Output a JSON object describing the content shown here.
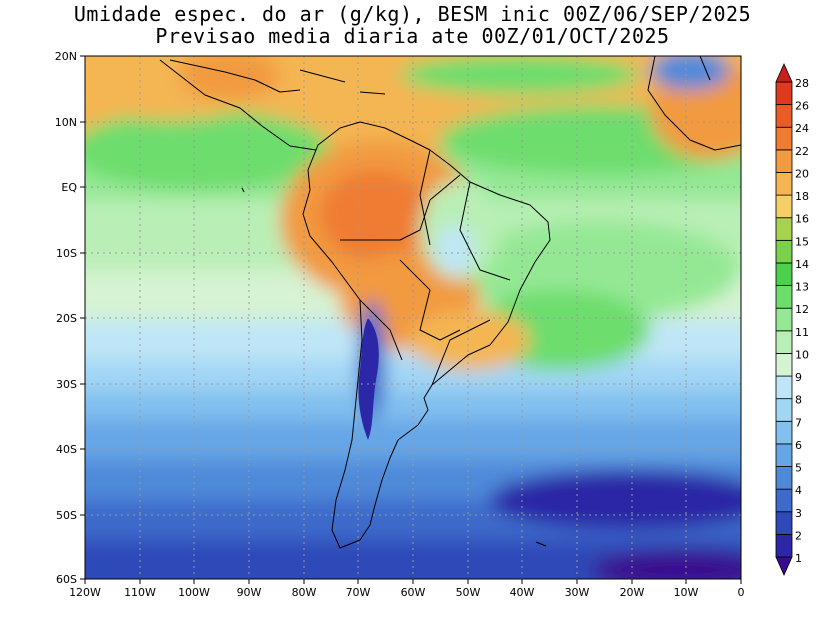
{
  "title": {
    "line1": "Umidade espec. do ar (g/kg), BESM inic 00Z/06/SEP/2025",
    "line2": "Previsao media diaria ate 00Z/01/OCT/2025"
  },
  "map": {
    "lat_labels": [
      "20N",
      "10N",
      "EQ",
      "10S",
      "20S",
      "30S",
      "40S",
      "50S",
      "60S"
    ],
    "lon_labels": [
      "120W",
      "110W",
      "100W",
      "90W",
      "80W",
      "70W",
      "60W",
      "50W",
      "40W",
      "30W",
      "20W",
      "10W",
      "0"
    ]
  },
  "colorbar": {
    "labels": [
      "1",
      "2",
      "3",
      "4",
      "5",
      "6",
      "7",
      "8",
      "9",
      "10",
      "11",
      "12",
      "13",
      "14",
      "15",
      "16",
      "18",
      "20",
      "22",
      "24",
      "26",
      "28"
    ],
    "colors": [
      "#3a0a8f",
      "#2c27a6",
      "#2f4ab8",
      "#3e6acb",
      "#4f8ad9",
      "#66a6e6",
      "#82c0ef",
      "#a2d6f5",
      "#bfe6f7",
      "#d6f3d3",
      "#b9efb6",
      "#94e894",
      "#6ddd6d",
      "#4ccf4c",
      "#7bd24a",
      "#a9d24e",
      "#f4cf66",
      "#f4b552",
      "#f29a40",
      "#ef7c32",
      "#ea5c26",
      "#e03a1e",
      "#c81e1e"
    ]
  }
}
